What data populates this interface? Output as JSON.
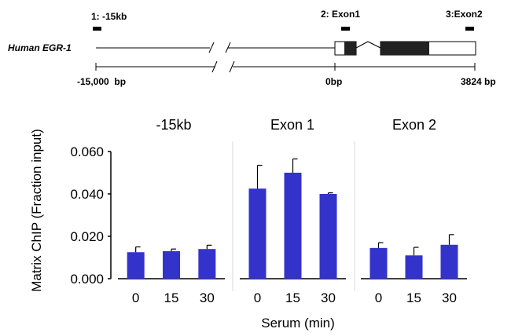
{
  "locus_map": {
    "gene_name": "Human EGR-1",
    "sites": [
      {
        "label": "1: -15kb"
      },
      {
        "label": "2: Exon1"
      },
      {
        "label": "3:Exon2"
      }
    ],
    "scale_labels": {
      "left": "-15,000  bp",
      "middle": "0bp",
      "right": "3824 bp"
    }
  },
  "colors": {
    "bar": "#3333cc",
    "axis": "#000000",
    "divider": "#d9d9d9",
    "exon": "#222222"
  },
  "chart_data": {
    "type": "bar",
    "ylabel": "Matrix ChIP (Fraction input)",
    "xlabel": "Serum (min)",
    "ylim": [
      0,
      0.06
    ],
    "yticks": [
      "0.000",
      "0.020",
      "0.040",
      "0.060"
    ],
    "ytick_values": [
      0,
      0.02,
      0.04,
      0.06
    ],
    "panels": [
      {
        "title": "-15kb",
        "categories": [
          "0",
          "15",
          "30"
        ],
        "values": [
          0.0125,
          0.013,
          0.014
        ],
        "errors": [
          0.0025,
          0.001,
          0.0018
        ]
      },
      {
        "title": "Exon 1",
        "categories": [
          "0",
          "15",
          "30"
        ],
        "values": [
          0.0425,
          0.05,
          0.04
        ],
        "errors": [
          0.011,
          0.0065,
          0.0005
        ]
      },
      {
        "title": "Exon 2",
        "categories": [
          "0",
          "15",
          "30"
        ],
        "values": [
          0.0145,
          0.011,
          0.016
        ],
        "errors": [
          0.0025,
          0.0038,
          0.0048
        ]
      }
    ]
  }
}
